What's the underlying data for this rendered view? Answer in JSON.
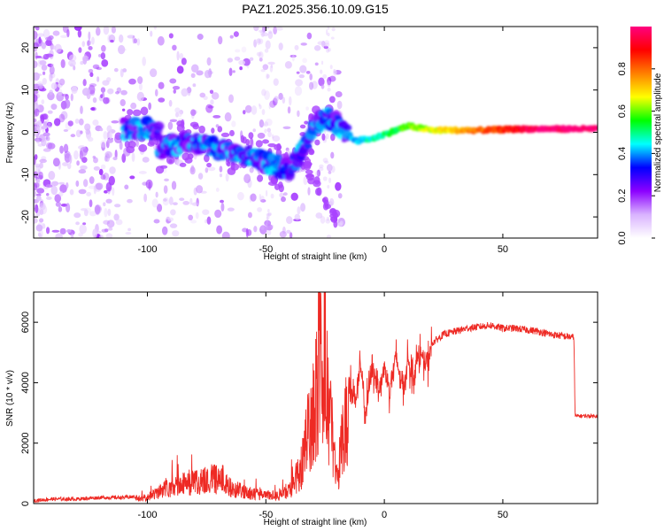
{
  "title": "PAZ1.2025.356.10.09.G15",
  "chart_data": [
    {
      "type": "heatmap",
      "xlabel": "Height of straight line (km)",
      "ylabel": "Frequency (Hz)",
      "xlim": [
        -148,
        90
      ],
      "ylim": [
        -25,
        25
      ],
      "xticks": [
        -100,
        -50,
        0,
        50
      ],
      "yticks": [
        -20,
        -10,
        0,
        10,
        20
      ],
      "colorbar": {
        "label": "Normalized spectral amplitude",
        "range": [
          0,
          1
        ],
        "ticks": [
          "0.0",
          "0.2",
          "0.4",
          "0.6",
          "0.8"
        ],
        "stops": [
          "#ffffff",
          "#d9b3ff",
          "#8c00ff",
          "#0000ff",
          "#00ffff",
          "#00ff00",
          "#ffff00",
          "#ff8000",
          "#ff0000",
          "#ff0080"
        ]
      },
      "ridge": [
        {
          "x": -95,
          "y": -4
        },
        {
          "x": -90,
          "y": -3
        },
        {
          "x": -80,
          "y": -2.5
        },
        {
          "x": -75,
          "y": -3
        },
        {
          "x": -70,
          "y": -4
        },
        {
          "x": -60,
          "y": -5
        },
        {
          "x": -55,
          "y": -6
        },
        {
          "x": -50,
          "y": -7
        },
        {
          "x": -45,
          "y": -8
        },
        {
          "x": -40,
          "y": -9
        },
        {
          "x": -35,
          "y": -4
        },
        {
          "x": -30,
          "y": 1
        },
        {
          "x": -25,
          "y": 4
        },
        {
          "x": -20,
          "y": 2
        },
        {
          "x": -15,
          "y": -1
        },
        {
          "x": -12,
          "y": -2
        },
        {
          "x": -5,
          "y": -1.5
        },
        {
          "x": 0,
          "y": -0.5
        },
        {
          "x": 5,
          "y": 0.5
        },
        {
          "x": 10,
          "y": 1.5
        },
        {
          "x": 20,
          "y": 0.5
        },
        {
          "x": 40,
          "y": 0.5
        },
        {
          "x": 60,
          "y": 0.8
        },
        {
          "x": 90,
          "y": 0.8
        }
      ]
    },
    {
      "type": "line",
      "xlabel": "Height of straight line (km)",
      "ylabel": "SNR (10 * v/v)",
      "xlim": [
        -148,
        90
      ],
      "ylim": [
        0,
        7000
      ],
      "xticks": [
        -100,
        -50,
        0,
        50
      ],
      "yticks": [
        0,
        2000,
        4000,
        6000
      ],
      "color": "#ee2a24",
      "series": [
        {
          "x": [
            -148,
            -140,
            -130,
            -120,
            -110,
            -100,
            -95,
            -90,
            -85,
            -80,
            -75,
            -70,
            -65,
            -60,
            -55,
            -50,
            -45,
            -40,
            -35,
            -32,
            -30,
            -28,
            -26,
            -24,
            -22,
            -20,
            -18,
            -15,
            -12,
            -10,
            -8,
            -5,
            -2,
            0,
            2,
            5,
            8,
            10,
            12,
            15,
            18,
            20,
            25,
            30,
            35,
            40,
            45,
            50,
            55,
            60,
            65,
            70,
            75,
            80,
            80.5,
            85,
            90
          ],
          "y": [
            100,
            150,
            150,
            200,
            200,
            250,
            500,
            700,
            800,
            900,
            1000,
            1000,
            700,
            500,
            400,
            350,
            350,
            500,
            1500,
            3000,
            4000,
            5000,
            6500,
            4500,
            3000,
            1000,
            2500,
            4000,
            3500,
            4500,
            3000,
            4500,
            3800,
            4500,
            3800,
            4800,
            3800,
            4800,
            4200,
            5000,
            4500,
            5300,
            5600,
            5700,
            5800,
            5850,
            5900,
            5800,
            5800,
            5750,
            5700,
            5600,
            5550,
            5500,
            2900,
            2900,
            2900
          ]
        }
      ]
    }
  ]
}
